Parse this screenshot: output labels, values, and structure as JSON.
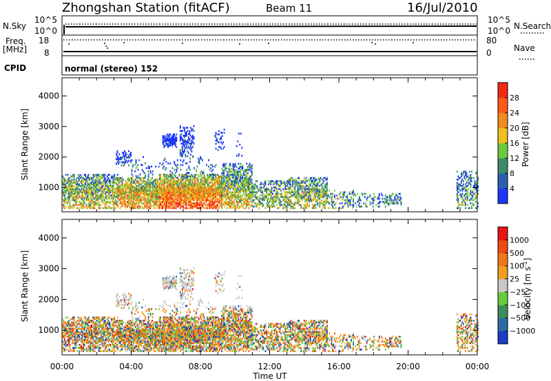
{
  "header": {
    "station": "Zhongshan Station (fitACF)",
    "beam": "Beam 11",
    "date": "16/Jul/2010"
  },
  "top_panels": {
    "nsky_label": "N.Sky",
    "nsky_ticks": [
      "10^5",
      "10^0"
    ],
    "nsearch_ticks": [
      "10^5",
      "10^0"
    ],
    "nsearch_label": "N.Search",
    "freq_label_1": "Freq.",
    "freq_label_2": "[MHz]",
    "freq_ticks": [
      "18",
      "8"
    ],
    "nave_ticks": [
      "80",
      "0"
    ],
    "nave_label": "Nave",
    "cpid_label": "CPID",
    "cpid_text": "normal (stereo) 152"
  },
  "chart_data": [
    {
      "type": "heatmap",
      "name": "power",
      "xlabel": "Time UT",
      "ylabel": "Slant Range [km]",
      "x_ticks": [
        "00:00",
        "04:00",
        "08:00",
        "12:00",
        "16:00",
        "20:00",
        "00:00"
      ],
      "y_ticks": [
        1000,
        2000,
        3000,
        4000
      ],
      "xlim": [
        0,
        24
      ],
      "ylim": [
        200,
        4600
      ],
      "colorbar_label": "Power [dB]",
      "colorbar_ticks": [
        4,
        8,
        12,
        16,
        20,
        24,
        28
      ],
      "colorbar_colors": [
        "#1e35ff",
        "#2a5fb0",
        "#3c8a6a",
        "#6ec840",
        "#f0c020",
        "#f08c1e",
        "#ff5a18",
        "#f02a14"
      ]
    },
    {
      "type": "heatmap",
      "name": "velocity",
      "xlabel": "Time UT",
      "ylabel": "Slant Range [km]",
      "x_ticks": [
        "00:00",
        "04:00",
        "08:00",
        "12:00",
        "16:00",
        "20:00",
        "00:00"
      ],
      "y_ticks": [
        1000,
        2000,
        3000,
        4000
      ],
      "xlim": [
        0,
        24
      ],
      "ylim": [
        200,
        4600
      ],
      "colorbar_label": "Velocity [m s",
      "colorbar_label_sup": "-1",
      "colorbar_label_end": "]",
      "colorbar_ticks": [
        "1000",
        "500",
        "100",
        "25",
        "−25",
        "−100",
        "−500",
        "−1000"
      ],
      "colorbar_colors": [
        "#1e3cc8",
        "#2e6aa6",
        "#3a8f5c",
        "#66cc3c",
        "#c8c8c8",
        "#f0a020",
        "#f07818",
        "#f04a14",
        "#e81414"
      ]
    }
  ]
}
